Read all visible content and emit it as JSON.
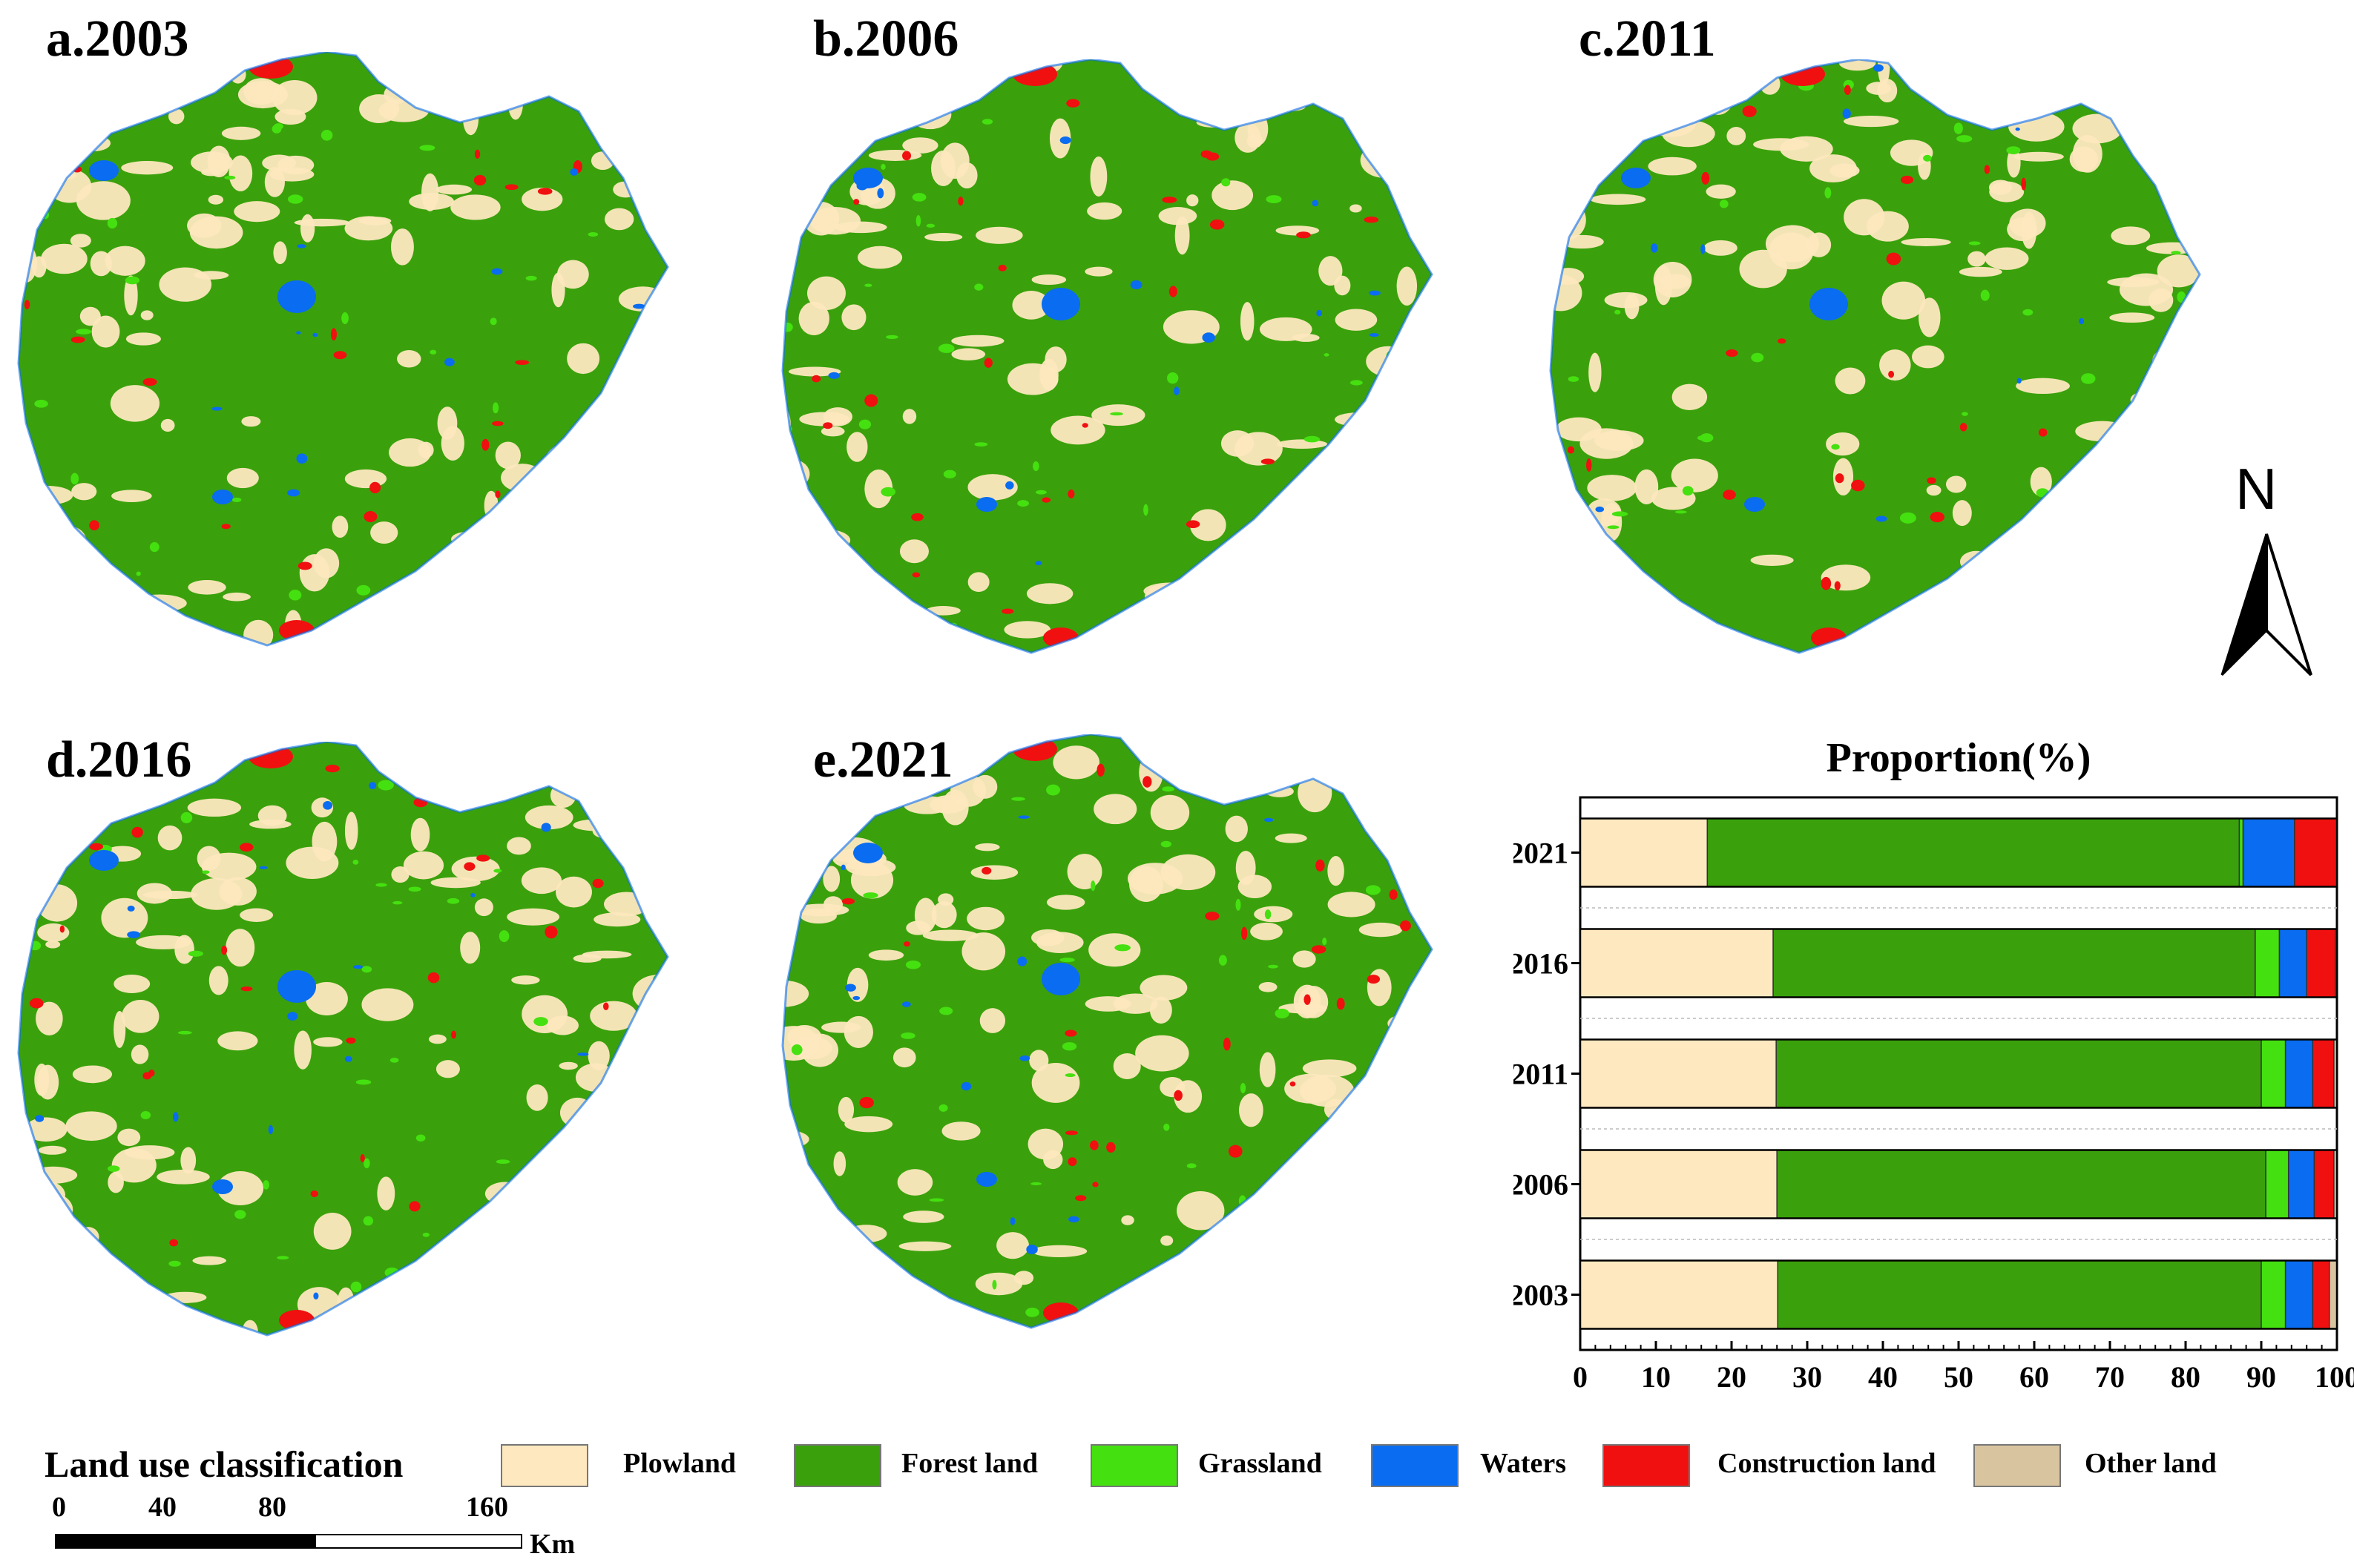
{
  "panels": [
    {
      "label": "a.2003"
    },
    {
      "label": "b.2006"
    },
    {
      "label": "c.2011"
    },
    {
      "label": "d.2016"
    },
    {
      "label": "e.2021"
    }
  ],
  "north_arrow": {
    "label": "N"
  },
  "colors": {
    "plowland": "#fde8bf",
    "forest_land": "#3aa10c",
    "grassland": "#45e010",
    "waters": "#0a6cf0",
    "construction_land": "#f01010",
    "other_land": "#d9c4a0"
  },
  "chart_data": {
    "type": "bar",
    "orientation": "horizontal",
    "stacked": true,
    "title": "Proportion(%)",
    "xlabel": "",
    "ylabel": "",
    "categories": [
      "2021",
      "2016",
      "2011",
      "2006",
      "2003"
    ],
    "xlim": [
      0,
      100
    ],
    "xticks": [
      "0",
      "10",
      "20",
      "30",
      "40",
      "50",
      "60",
      "70",
      "80",
      "90",
      "100"
    ],
    "series": [
      {
        "name": "Plowland",
        "values": [
          16.8,
          25.5,
          25.9,
          26.0,
          26.1
        ]
      },
      {
        "name": "Forest land",
        "values": [
          70.3,
          63.7,
          64.1,
          64.6,
          63.9
        ]
      },
      {
        "name": "Grassland",
        "values": [
          0.5,
          3.2,
          3.2,
          3.0,
          3.2
        ]
      },
      {
        "name": "Waters",
        "values": [
          6.8,
          3.6,
          3.6,
          3.4,
          3.6
        ]
      },
      {
        "name": "Construction land",
        "values": [
          5.6,
          3.8,
          2.8,
          2.6,
          2.2
        ]
      },
      {
        "name": "Other land",
        "values": [
          0.0,
          0.2,
          0.4,
          0.4,
          1.0
        ]
      }
    ]
  },
  "legend": {
    "title": "Land use classification",
    "items": [
      "Plowland",
      "Forest land",
      "Grassland",
      "Waters",
      "Construction land",
      "Other land"
    ]
  },
  "scalebar": {
    "ticks": [
      "0",
      "40",
      "80",
      "160"
    ],
    "unit": "Km"
  }
}
